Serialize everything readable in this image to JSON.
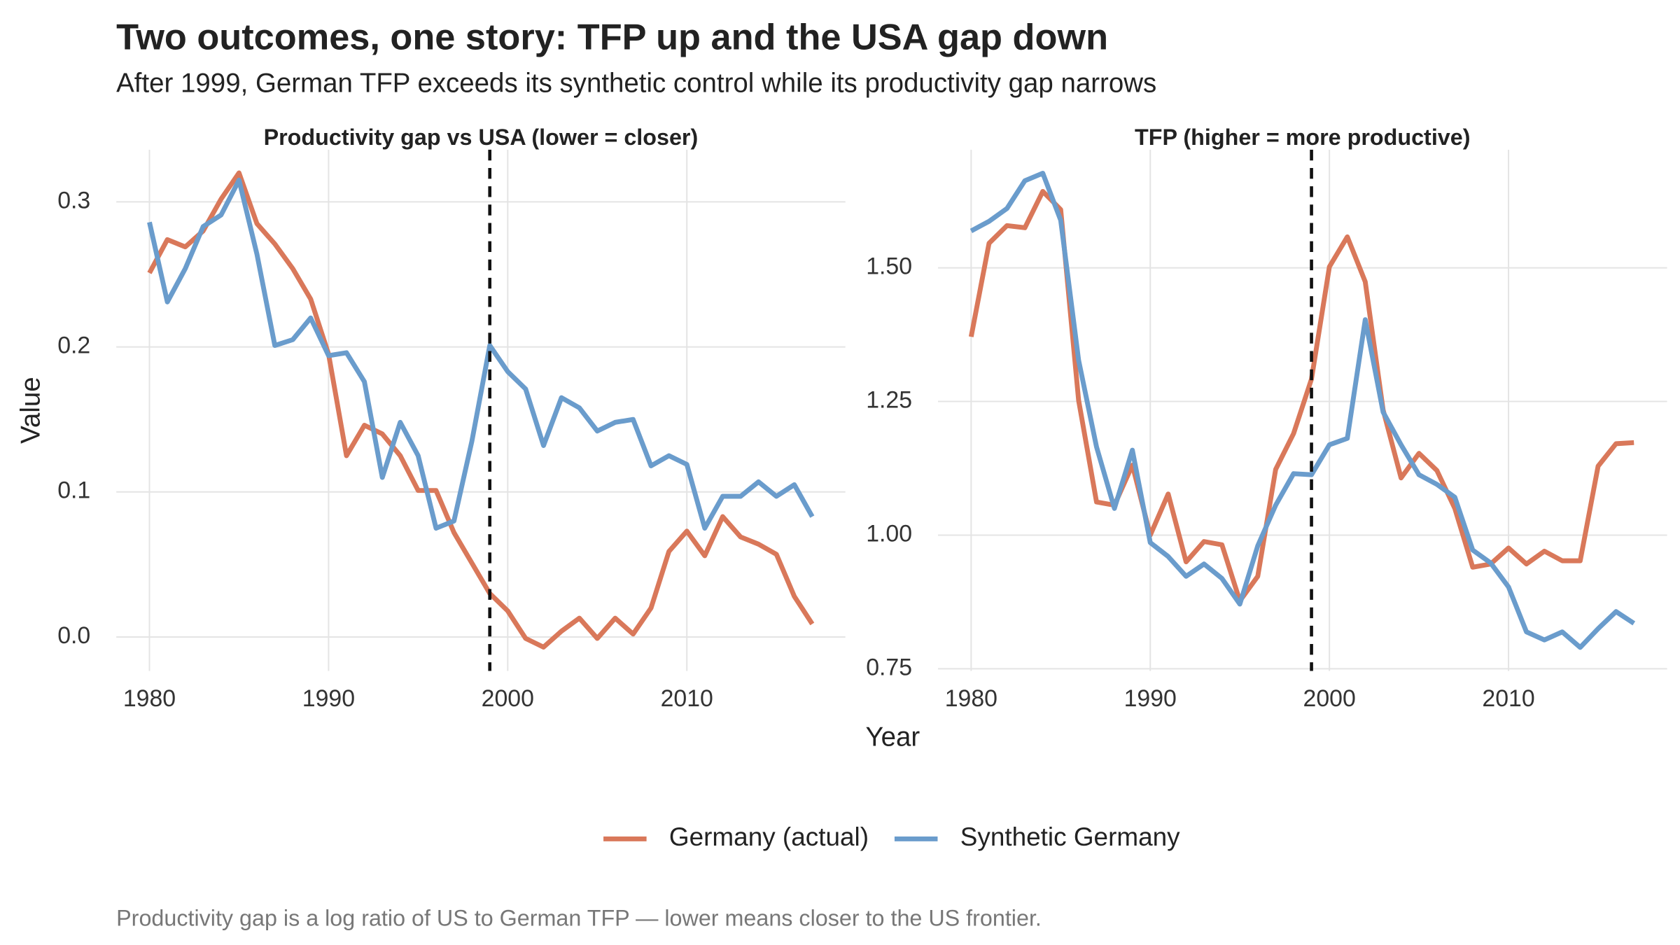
{
  "title": "Two outcomes, one story: TFP up and the USA gap down",
  "subtitle": "After 1999, German TFP exceeds its synthetic control while its productivity gap narrows",
  "caption": "Productivity gap is a log ratio of US to German TFP — lower means closer to the US frontier.",
  "x_label": "Year",
  "y_label": "Value",
  "legend": "bottom",
  "chart_data": [
    {
      "type": "line",
      "title": "Productivity gap vs USA (lower = closer)",
      "x": [
        1980,
        1981,
        1982,
        1983,
        1984,
        1985,
        1986,
        1987,
        1988,
        1989,
        1990,
        1991,
        1992,
        1993,
        1994,
        1995,
        1996,
        1997,
        1998,
        1999,
        2000,
        2001,
        2002,
        2003,
        2004,
        2005,
        2006,
        2007,
        2008,
        2009,
        2010,
        2011,
        2012,
        2013,
        2014,
        2015,
        2016,
        2017
      ],
      "series": [
        {
          "name": "Germany (actual)",
          "color": "#d9785a",
          "values": [
            0.251,
            0.274,
            0.269,
            0.28,
            0.302,
            0.32,
            0.285,
            0.271,
            0.254,
            0.233,
            0.195,
            0.125,
            0.146,
            0.14,
            0.125,
            0.101,
            0.101,
            0.072,
            0.051,
            0.03,
            0.018,
            -0.001,
            -0.007,
            0.004,
            0.013,
            -0.001,
            0.013,
            0.002,
            0.02,
            0.059,
            0.073,
            0.056,
            0.083,
            0.069,
            0.064,
            0.057,
            0.028,
            0.009
          ]
        },
        {
          "name": "Synthetic Germany",
          "color": "#6a9ccc",
          "values": [
            0.286,
            0.231,
            0.254,
            0.283,
            0.291,
            0.315,
            0.264,
            0.201,
            0.205,
            0.22,
            0.194,
            0.196,
            0.176,
            0.11,
            0.148,
            0.125,
            0.075,
            0.08,
            0.135,
            0.201,
            0.183,
            0.171,
            0.132,
            0.165,
            0.158,
            0.142,
            0.148,
            0.15,
            0.118,
            0.125,
            0.119,
            0.075,
            0.097,
            0.097,
            0.107,
            0.097,
            0.105,
            0.083
          ]
        }
      ],
      "xlim": [
        1978.15,
        2018.85
      ],
      "xticks": [
        1980,
        1990,
        2000,
        2010
      ],
      "ylim": [
        -0.0234,
        0.336
      ],
      "yticks": [
        {
          "value": 0,
          "label": "0.0"
        },
        0.1,
        0.2,
        {
          "value": 0.3,
          "label": "0.3"
        }
      ],
      "vline": 1999,
      "grid": true
    },
    {
      "type": "line",
      "title": "TFP (higher = more productive)",
      "x": [
        1980,
        1981,
        1982,
        1983,
        1984,
        1985,
        1986,
        1987,
        1988,
        1989,
        1990,
        1991,
        1992,
        1993,
        1994,
        1995,
        1996,
        1997,
        1998,
        1999,
        2000,
        2001,
        2002,
        2003,
        2004,
        2005,
        2006,
        2007,
        2008,
        2009,
        2010,
        2011,
        2012,
        2013,
        2014,
        2015,
        2016,
        2017
      ],
      "series": [
        {
          "name": "Germany (actual)",
          "color": "#d9785a",
          "values": [
            1.371,
            1.546,
            1.579,
            1.575,
            1.643,
            1.609,
            1.252,
            1.062,
            1.056,
            1.131,
            1.0,
            1.077,
            0.95,
            0.988,
            0.982,
            0.877,
            0.923,
            1.123,
            1.19,
            1.292,
            1.502,
            1.558,
            1.474,
            1.234,
            1.107,
            1.153,
            1.121,
            1.05,
            0.94,
            0.946,
            0.976,
            0.946,
            0.97,
            0.952,
            0.952,
            1.129,
            1.171,
            1.173
          ]
        },
        {
          "name": "Synthetic Germany",
          "color": "#6a9ccc",
          "values": [
            1.569,
            1.587,
            1.611,
            1.663,
            1.677,
            1.589,
            1.327,
            1.165,
            1.05,
            1.159,
            0.986,
            0.96,
            0.923,
            0.946,
            0.919,
            0.871,
            0.98,
            1.056,
            1.115,
            1.113,
            1.169,
            1.181,
            1.403,
            1.23,
            1.169,
            1.113,
            1.095,
            1.071,
            0.972,
            0.948,
            0.903,
            0.819,
            0.804,
            0.819,
            0.79,
            0.825,
            0.857,
            0.835
          ]
        }
      ],
      "xlim": [
        1978.15,
        2018.85
      ],
      "xticks": [
        1980,
        1990,
        2000,
        2010
      ],
      "ylim": [
        0.746,
        1.721
      ],
      "yticks": [
        0.75,
        {
          "value": 1,
          "label": "1.00"
        },
        1.25,
        {
          "value": 1.5,
          "label": "1.50"
        }
      ],
      "vline": 1999,
      "grid": true
    }
  ]
}
